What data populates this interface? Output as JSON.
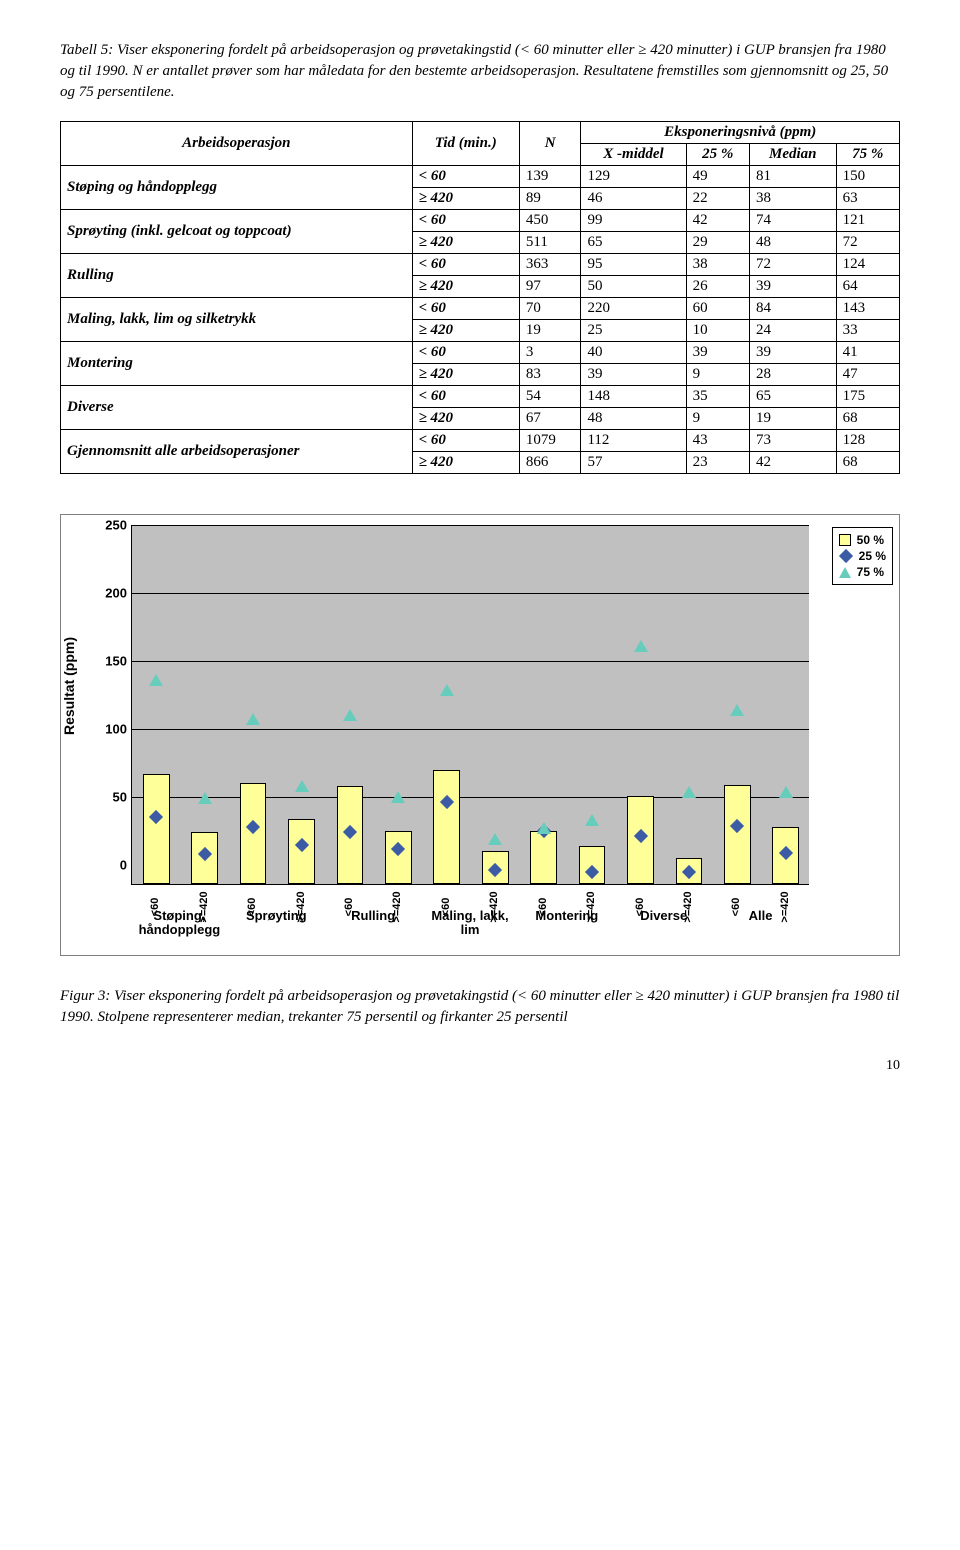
{
  "caption1": "Tabell 5: Viser eksponering fordelt på arbeidsoperasjon og prøvetakingstid (< 60 minutter eller ≥ 420 minutter) i GUP bransjen fra 1980 og til 1990. N er antallet prøver som har måledata for den bestemte arbeidsoperasjon. Resultatene fremstilles som gjennomsnitt og 25, 50 og 75 persentilene.",
  "table": {
    "header1": [
      "Arbeidsoperasjon",
      "Tid (min.)",
      "N",
      "Eksponeringsnivå (ppm)"
    ],
    "header2": [
      "X -middel",
      "25 %",
      "Median",
      "75 %"
    ],
    "ops": [
      {
        "name": "Støping og håndopplegg",
        "rows": [
          {
            "tid": "< 60",
            "n": "139",
            "x": "129",
            "p25": "49",
            "med": "81",
            "p75": "150"
          },
          {
            "tid": "≥ 420",
            "n": "89",
            "x": "46",
            "p25": "22",
            "med": "38",
            "p75": "63"
          }
        ]
      },
      {
        "name": "Sprøyting (inkl. gelcoat og toppcoat)",
        "rows": [
          {
            "tid": "< 60",
            "n": "450",
            "x": "99",
            "p25": "42",
            "med": "74",
            "p75": "121"
          },
          {
            "tid": "≥ 420",
            "n": "511",
            "x": "65",
            "p25": "29",
            "med": "48",
            "p75": "72"
          }
        ]
      },
      {
        "name": "Rulling",
        "rows": [
          {
            "tid": "< 60",
            "n": "363",
            "x": "95",
            "p25": "38",
            "med": "72",
            "p75": "124"
          },
          {
            "tid": "≥ 420",
            "n": "97",
            "x": "50",
            "p25": "26",
            "med": "39",
            "p75": "64"
          }
        ]
      },
      {
        "name": "Maling, lakk, lim og silketrykk",
        "rows": [
          {
            "tid": "< 60",
            "n": "70",
            "x": "220",
            "p25": "60",
            "med": "84",
            "p75": "143"
          },
          {
            "tid": "≥ 420",
            "n": "19",
            "x": "25",
            "p25": "10",
            "med": "24",
            "p75": "33"
          }
        ]
      },
      {
        "name": "Montering",
        "rows": [
          {
            "tid": "< 60",
            "n": "3",
            "x": "40",
            "p25": "39",
            "med": "39",
            "p75": "41"
          },
          {
            "tid": "≥ 420",
            "n": "83",
            "x": "39",
            "p25": "9",
            "med": "28",
            "p75": "47"
          }
        ]
      },
      {
        "name": "Diverse",
        "rows": [
          {
            "tid": "< 60",
            "n": "54",
            "x": "148",
            "p25": "35",
            "med": "65",
            "p75": "175"
          },
          {
            "tid": "≥ 420",
            "n": "67",
            "x": "48",
            "p25": "9",
            "med": "19",
            "p75": "68"
          }
        ]
      },
      {
        "name": "Gjennomsnitt alle arbeidsoperasjoner",
        "rows": [
          {
            "tid": "< 60",
            "n": "1079",
            "x": "112",
            "p25": "43",
            "med": "73",
            "p75": "128"
          },
          {
            "tid": "≥ 420",
            "n": "866",
            "x": "57",
            "p25": "23",
            "med": "42",
            "p75": "68"
          }
        ]
      }
    ]
  },
  "chart": {
    "type": "bar-with-markers",
    "y_label": "Resultat (ppm)",
    "y_max": 250,
    "y_step": 50,
    "y_ticks": [
      0,
      50,
      100,
      150,
      200,
      250
    ],
    "legend": [
      {
        "shape": "sq",
        "label": "50 %"
      },
      {
        "shape": "di",
        "label": "25 %"
      },
      {
        "shape": "tri",
        "label": "75 %"
      }
    ],
    "bar_color": "#ffff99",
    "plot_bg": "#c0c0c0",
    "tri_color": "#66ccbb",
    "di_color": "#3b5ba5",
    "groups": [
      {
        "label": "Støping, håndopplegg",
        "bars": [
          {
            "tick": "<60",
            "p50": 81,
            "p25": 49,
            "p75": 150
          },
          {
            "tick": ">=420",
            "p50": 38,
            "p25": 22,
            "p75": 63
          }
        ]
      },
      {
        "label": "Sprøyting",
        "bars": [
          {
            "tick": "<60",
            "p50": 74,
            "p25": 42,
            "p75": 121
          },
          {
            "tick": ">=420",
            "p50": 48,
            "p25": 29,
            "p75": 72
          }
        ]
      },
      {
        "label": "Rulling",
        "bars": [
          {
            "tick": "<60",
            "p50": 72,
            "p25": 38,
            "p75": 124
          },
          {
            "tick": ">=420",
            "p50": 39,
            "p25": 26,
            "p75": 64
          }
        ]
      },
      {
        "label": "Maling, lakk, lim",
        "bars": [
          {
            "tick": "<60",
            "p50": 84,
            "p25": 60,
            "p75": 143
          },
          {
            "tick": ">=420",
            "p50": 24,
            "p25": 10,
            "p75": 33
          }
        ]
      },
      {
        "label": "Montering",
        "bars": [
          {
            "tick": "<60",
            "p50": 39,
            "p25": 39,
            "p75": 41
          },
          {
            "tick": ">=420",
            "p50": 28,
            "p25": 9,
            "p75": 47
          }
        ]
      },
      {
        "label": "Diverse",
        "bars": [
          {
            "tick": "<60",
            "p50": 65,
            "p25": 35,
            "p75": 175
          },
          {
            "tick": ">=420",
            "p50": 19,
            "p25": 9,
            "p75": 68
          }
        ]
      },
      {
        "label": "Alle",
        "bars": [
          {
            "tick": "<60",
            "p50": 73,
            "p25": 43,
            "p75": 128
          },
          {
            "tick": ">=420",
            "p50": 42,
            "p25": 23,
            "p75": 68
          }
        ]
      }
    ]
  },
  "caption2": "Figur 3: Viser eksponering fordelt på arbeidsoperasjon og prøvetakingstid (< 60 minutter eller ≥ 420 minutter) i GUP bransjen fra 1980 til 1990. Stolpene representerer median, trekanter 75 persentil og firkanter 25 persentil",
  "pagenum": "10"
}
